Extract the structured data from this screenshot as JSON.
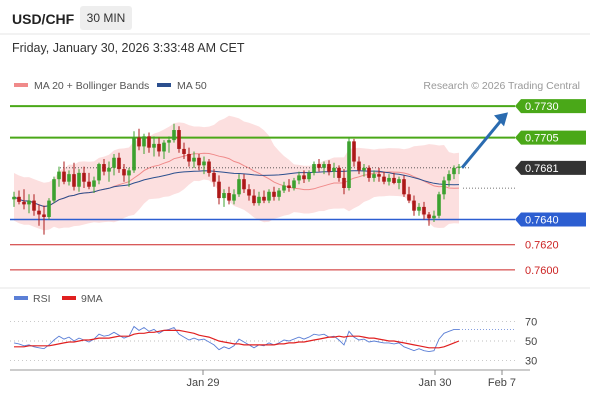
{
  "header": {
    "symbol": "USD/CHF",
    "timeframe": "30 MIN",
    "timestamp": "Friday, January 30, 2026 3:33:48 AM CET"
  },
  "legend": {
    "main": [
      {
        "label": "MA 20 + Bollinger Bands",
        "color": "#f08a8a"
      },
      {
        "label": "MA 50",
        "color": "#2b4f8e"
      }
    ],
    "rsi": [
      {
        "label": "RSI",
        "color": "#5b7fd6"
      },
      {
        "label": "9MA",
        "color": "#e02020"
      }
    ]
  },
  "credit": "Research © 2026 Trading Central",
  "colors": {
    "bull": "#3ca12f",
    "bear": "#ad1818",
    "resistance": "#4aa818",
    "support": "#2c5ed1",
    "target": "#cc2424",
    "arrow": "#2a6bb0",
    "band": "#fbd4d4"
  },
  "chart_data": [
    {
      "type": "candlestick",
      "title": "USD/CHF",
      "timeframe": "30 MIN",
      "ylim": [
        0.7592,
        0.7738
      ],
      "x_ticks": [
        "Jan 29",
        "Jan 30",
        "Feb 7"
      ],
      "last_price": "0.7681",
      "levels": [
        {
          "value": "0.7730",
          "kind": "resistance"
        },
        {
          "value": "0.7705",
          "kind": "resistance"
        },
        {
          "value": "0.7640",
          "kind": "support"
        },
        {
          "value": "0.7620",
          "kind": "target"
        },
        {
          "value": "0.7600",
          "kind": "target"
        }
      ],
      "forecast": {
        "from": 0.7681,
        "to": 0.7725
      },
      "ohlc": [
        [
          0.7656,
          0.7662,
          0.765,
          0.7658
        ],
        [
          0.7658,
          0.7663,
          0.7652,
          0.7654
        ],
        [
          0.7654,
          0.7664,
          0.7648,
          0.7652
        ],
        [
          0.7652,
          0.766,
          0.7645,
          0.7655
        ],
        [
          0.7655,
          0.766,
          0.7643,
          0.7647
        ],
        [
          0.7647,
          0.7652,
          0.7635,
          0.7644
        ],
        [
          0.7644,
          0.7651,
          0.7628,
          0.7642
        ],
        [
          0.7642,
          0.7657,
          0.764,
          0.7655
        ],
        [
          0.7655,
          0.7674,
          0.7653,
          0.7672
        ],
        [
          0.7672,
          0.7682,
          0.7666,
          0.7678
        ],
        [
          0.7678,
          0.7686,
          0.7668,
          0.767
        ],
        [
          0.767,
          0.7679,
          0.7667,
          0.7676
        ],
        [
          0.7676,
          0.7685,
          0.7663,
          0.7666
        ],
        [
          0.7666,
          0.768,
          0.7662,
          0.7677
        ],
        [
          0.7677,
          0.7682,
          0.7665,
          0.767
        ],
        [
          0.767,
          0.7677,
          0.7664,
          0.7666
        ],
        [
          0.7666,
          0.7674,
          0.7661,
          0.7671
        ],
        [
          0.7671,
          0.7685,
          0.7668,
          0.7684
        ],
        [
          0.7684,
          0.7688,
          0.7675,
          0.7678
        ],
        [
          0.7678,
          0.7686,
          0.767,
          0.7681
        ],
        [
          0.7681,
          0.7692,
          0.7675,
          0.7689
        ],
        [
          0.7689,
          0.7693,
          0.7677,
          0.768
        ],
        [
          0.768,
          0.7684,
          0.767,
          0.7675
        ],
        [
          0.7675,
          0.7681,
          0.7666,
          0.7679
        ],
        [
          0.7679,
          0.771,
          0.7677,
          0.7705
        ],
        [
          0.7705,
          0.7712,
          0.7695,
          0.7698
        ],
        [
          0.7698,
          0.7708,
          0.7692,
          0.7706
        ],
        [
          0.7706,
          0.7709,
          0.7693,
          0.7697
        ],
        [
          0.7697,
          0.7706,
          0.769,
          0.77
        ],
        [
          0.77,
          0.7705,
          0.769,
          0.7694
        ],
        [
          0.7694,
          0.7703,
          0.7688,
          0.7701
        ],
        [
          0.7701,
          0.7706,
          0.7693,
          0.7703
        ],
        [
          0.7703,
          0.7716,
          0.7701,
          0.7711
        ],
        [
          0.7711,
          0.7714,
          0.7693,
          0.7696
        ],
        [
          0.7696,
          0.7701,
          0.7688,
          0.7692
        ],
        [
          0.7692,
          0.7697,
          0.7682,
          0.7686
        ],
        [
          0.7686,
          0.7694,
          0.7681,
          0.7689
        ],
        [
          0.7689,
          0.7692,
          0.7679,
          0.7683
        ],
        [
          0.7683,
          0.769,
          0.7676,
          0.7686
        ],
        [
          0.7686,
          0.7688,
          0.7674,
          0.7677
        ],
        [
          0.7677,
          0.768,
          0.7666,
          0.767
        ],
        [
          0.767,
          0.7675,
          0.7652,
          0.7657
        ],
        [
          0.7657,
          0.7664,
          0.765,
          0.7661
        ],
        [
          0.7661,
          0.7666,
          0.7652,
          0.7655
        ],
        [
          0.7655,
          0.7664,
          0.7652,
          0.766
        ],
        [
          0.766,
          0.7676,
          0.7658,
          0.7672
        ],
        [
          0.7672,
          0.7676,
          0.7661,
          0.7664
        ],
        [
          0.7664,
          0.7668,
          0.7655,
          0.7659
        ],
        [
          0.7659,
          0.7664,
          0.7651,
          0.7653
        ],
        [
          0.7653,
          0.7662,
          0.7651,
          0.7658
        ],
        [
          0.7658,
          0.7663,
          0.7653,
          0.7655
        ],
        [
          0.7655,
          0.7664,
          0.7653,
          0.7662
        ],
        [
          0.7662,
          0.7666,
          0.7655,
          0.7658
        ],
        [
          0.7658,
          0.7665,
          0.7655,
          0.7663
        ],
        [
          0.7663,
          0.767,
          0.7661,
          0.7667
        ],
        [
          0.7667,
          0.7672,
          0.7662,
          0.7665
        ],
        [
          0.7665,
          0.7673,
          0.7663,
          0.7671
        ],
        [
          0.7671,
          0.7678,
          0.7668,
          0.7675
        ],
        [
          0.7675,
          0.7679,
          0.7669,
          0.7672
        ],
        [
          0.7672,
          0.7679,
          0.767,
          0.7677
        ],
        [
          0.7677,
          0.7686,
          0.7675,
          0.7684
        ],
        [
          0.7684,
          0.7688,
          0.7678,
          0.7681
        ],
        [
          0.7681,
          0.7686,
          0.7676,
          0.7684
        ],
        [
          0.7684,
          0.7687,
          0.7675,
          0.7678
        ],
        [
          0.7678,
          0.7685,
          0.7673,
          0.7681
        ],
        [
          0.7681,
          0.7683,
          0.767,
          0.7673
        ],
        [
          0.7673,
          0.768,
          0.766,
          0.7665
        ],
        [
          0.7665,
          0.7705,
          0.7663,
          0.7702
        ],
        [
          0.7702,
          0.7704,
          0.7682,
          0.7686
        ],
        [
          0.7686,
          0.769,
          0.7676,
          0.7679
        ],
        [
          0.7679,
          0.7684,
          0.7674,
          0.7681
        ],
        [
          0.7681,
          0.7683,
          0.767,
          0.7673
        ],
        [
          0.7673,
          0.7679,
          0.767,
          0.7676
        ],
        [
          0.7676,
          0.7681,
          0.767,
          0.7674
        ],
        [
          0.7674,
          0.7678,
          0.7668,
          0.767
        ],
        [
          0.767,
          0.7676,
          0.7667,
          0.7673
        ],
        [
          0.7673,
          0.7677,
          0.7668,
          0.7669
        ],
        [
          0.7669,
          0.7674,
          0.7664,
          0.7672
        ],
        [
          0.7672,
          0.7675,
          0.7658,
          0.766
        ],
        [
          0.766,
          0.7666,
          0.7653,
          0.7655
        ],
        [
          0.7655,
          0.7659,
          0.7643,
          0.7647
        ],
        [
          0.7647,
          0.7653,
          0.7643,
          0.765
        ],
        [
          0.765,
          0.7654,
          0.764,
          0.7644
        ],
        [
          0.7644,
          0.7646,
          0.7635,
          0.7641
        ],
        [
          0.7641,
          0.7647,
          0.7638,
          0.7643
        ],
        [
          0.7643,
          0.7662,
          0.7641,
          0.766
        ],
        [
          0.766,
          0.7674,
          0.7656,
          0.7671
        ],
        [
          0.7671,
          0.7679,
          0.7666,
          0.7676
        ],
        [
          0.7676,
          0.7683,
          0.7672,
          0.7681
        ],
        [
          0.7681,
          0.7684,
          0.7676,
          0.7682
        ]
      ]
    },
    {
      "type": "line",
      "title": "RSI",
      "ylim": [
        20,
        80
      ],
      "y_ticks": [
        70,
        50,
        30
      ],
      "series": [
        {
          "name": "RSI",
          "values": [
            48,
            47,
            45,
            46,
            44,
            43,
            42,
            46,
            51,
            55,
            52,
            54,
            50,
            53,
            51,
            49,
            52,
            57,
            55,
            56,
            59,
            56,
            53,
            55,
            65,
            61,
            64,
            60,
            62,
            58,
            61,
            62,
            64,
            57,
            54,
            51,
            53,
            51,
            52,
            49,
            46,
            41,
            44,
            42,
            45,
            52,
            49,
            46,
            43,
            46,
            45,
            48,
            46,
            48,
            51,
            50,
            52,
            54,
            52,
            54,
            57,
            56,
            57,
            54,
            55,
            51,
            46,
            60,
            54,
            51,
            52,
            49,
            50,
            49,
            48,
            48,
            47,
            48,
            44,
            42,
            40,
            42,
            40,
            39,
            40,
            52,
            58,
            60,
            62,
            62
          ]
        },
        {
          "name": "9MA",
          "values": [
            44,
            44,
            44,
            45,
            45,
            45,
            45,
            45,
            46,
            47,
            48,
            49,
            49,
            50,
            51,
            51,
            52,
            53,
            53,
            53,
            54,
            55,
            55,
            55,
            57,
            58,
            58,
            59,
            59,
            60,
            61,
            61,
            61,
            61,
            60,
            59,
            58,
            56,
            55,
            54,
            52,
            50,
            49,
            48,
            47,
            47,
            46,
            46,
            46,
            46,
            46,
            46,
            46,
            47,
            47,
            48,
            48,
            49,
            49,
            50,
            51,
            52,
            53,
            54,
            54,
            55,
            54,
            55,
            55,
            55,
            54,
            53,
            53,
            52,
            51,
            50,
            50,
            49,
            48,
            47,
            46,
            45,
            44,
            43,
            43,
            43,
            44,
            46,
            48,
            50
          ]
        }
      ]
    }
  ]
}
